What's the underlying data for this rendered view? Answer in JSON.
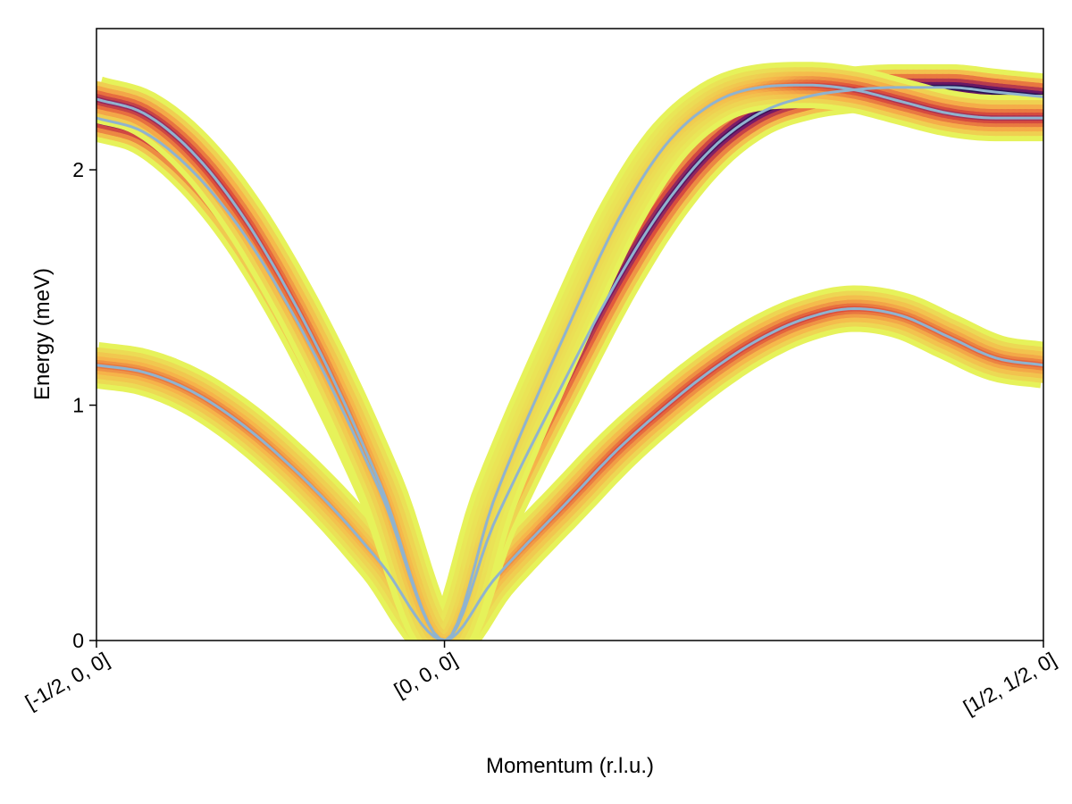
{
  "chart_data": {
    "type": "line",
    "xlabel": "Momentum (r.l.u.)",
    "ylabel": "Energy (meV)",
    "xlim": [
      0,
      1
    ],
    "ylim": [
      0,
      2.6
    ],
    "x_ticks": [
      {
        "value": 0,
        "label": "[-1/2, 0, 0]"
      },
      {
        "value": 0.3675,
        "label": "[0, 0, 0]"
      },
      {
        "value": 1,
        "label": "[1/2, 1/2, 0]"
      }
    ],
    "y_ticks": [
      {
        "value": 0,
        "label": "0"
      },
      {
        "value": 1,
        "label": "1"
      },
      {
        "value": 2,
        "label": "2"
      }
    ],
    "grid": false,
    "intensity_colormap": [
      "#e6f25a",
      "#f6b44a",
      "#e0503a",
      "#7a1a6a",
      "#1c1150"
    ],
    "dispersion_line_color": "#8fb3cf",
    "series": [
      {
        "x": [
          0,
          0.05,
          0.1,
          0.15,
          0.2,
          0.25,
          0.3,
          0.3675,
          0.42,
          0.5,
          0.55,
          0.6,
          0.65,
          0.7,
          0.75,
          0.8,
          0.85,
          0.9,
          0.95,
          1
        ],
        "y": [
          1.17,
          1.14,
          1.06,
          0.93,
          0.76,
          0.56,
          0.33,
          0,
          0.26,
          0.6,
          0.81,
          0.99,
          1.15,
          1.28,
          1.37,
          1.41,
          1.38,
          1.29,
          1.2,
          1.17
        ],
        "weight": [
          0.4,
          0.4,
          0.4,
          0.4,
          0.35,
          0.3,
          0.25,
          0.2,
          0.3,
          0.45,
          0.5,
          0.55,
          0.55,
          0.55,
          0.55,
          0.5,
          0.45,
          0.45,
          0.45,
          0.45
        ]
      },
      {
        "x": [
          0,
          0.05,
          0.1,
          0.15,
          0.2,
          0.25,
          0.3,
          0.3675,
          0.42,
          0.5,
          0.55,
          0.6,
          0.65,
          0.7,
          0.75,
          0.8,
          0.85,
          0.9,
          0.95,
          1
        ],
        "y": [
          2.22,
          2.16,
          2.0,
          1.76,
          1.44,
          1.06,
          0.63,
          0,
          0.5,
          1.15,
          1.53,
          1.85,
          2.09,
          2.24,
          2.31,
          2.34,
          2.35,
          2.35,
          2.33,
          2.31
        ],
        "weight": [
          0.9,
          0.9,
          0.85,
          0.8,
          0.75,
          0.65,
          0.55,
          0.4,
          0.55,
          0.7,
          0.8,
          0.85,
          0.9,
          0.95,
          1.0,
          1.0,
          1.0,
          1.0,
          1.0,
          1.0
        ]
      },
      {
        "x": [
          0,
          0.05,
          0.1,
          0.15,
          0.2,
          0.25,
          0.3,
          0.3675,
          0.42,
          0.5,
          0.55,
          0.6,
          0.65,
          0.7,
          0.75,
          0.8,
          0.85,
          0.9,
          0.95,
          1
        ],
        "y": [
          2.3,
          2.24,
          2.08,
          1.83,
          1.5,
          1.11,
          0.66,
          0,
          0.6,
          1.35,
          1.78,
          2.1,
          2.28,
          2.35,
          2.36,
          2.34,
          2.29,
          2.24,
          2.22,
          2.22
        ],
        "weight": [
          0.7,
          0.7,
          0.65,
          0.6,
          0.5,
          0.4,
          0.3,
          0.2,
          0.1,
          0.1,
          0.1,
          0.12,
          0.2,
          0.3,
          0.5,
          0.6,
          0.65,
          0.65,
          0.65,
          0.65
        ]
      }
    ]
  }
}
